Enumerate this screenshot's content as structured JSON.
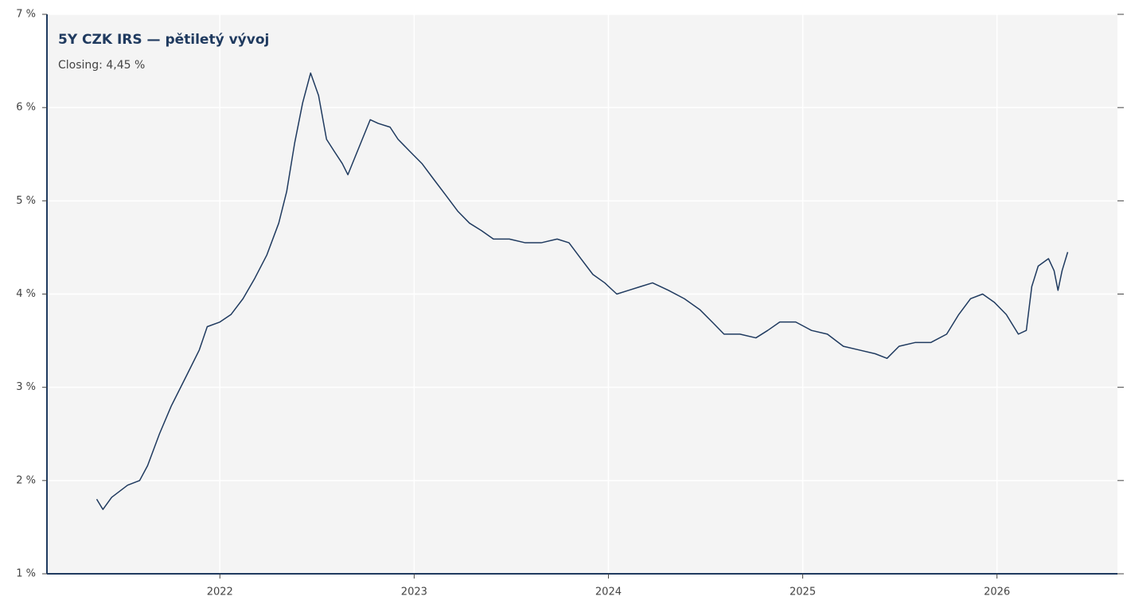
{
  "chart_data": {
    "type": "line",
    "title": "5Y CZK IRS — pětiletý vývoj",
    "subtitle": "Closing: 4,45 %",
    "x": [
      2021.366,
      2021.398,
      2021.443,
      2021.525,
      2021.587,
      2021.628,
      2021.689,
      2021.75,
      2021.832,
      2021.894,
      2021.935,
      2022.0,
      2022.057,
      2022.119,
      2022.18,
      2022.242,
      2022.303,
      2022.344,
      2022.385,
      2022.426,
      2022.467,
      2022.508,
      2022.549,
      2022.589,
      2022.63,
      2022.659,
      2022.692,
      2022.733,
      2022.774,
      2022.815,
      2022.876,
      2022.917,
      2022.978,
      2023.04,
      2023.101,
      2023.163,
      2023.224,
      2023.285,
      2023.347,
      2023.408,
      2023.49,
      2023.572,
      2023.654,
      2023.736,
      2023.797,
      2023.858,
      2023.92,
      2023.981,
      2024.043,
      2024.104,
      2024.165,
      2024.227,
      2024.309,
      2024.391,
      2024.472,
      2024.534,
      2024.595,
      2024.677,
      2024.759,
      2024.82,
      2024.882,
      2024.964,
      2025.045,
      2025.127,
      2025.209,
      2025.291,
      2025.373,
      2025.434,
      2025.496,
      2025.578,
      2025.659,
      2025.741,
      2025.803,
      2025.864,
      2025.926,
      2025.987,
      2026.048,
      2026.11,
      2026.151,
      2026.179,
      2026.212,
      2026.265,
      2026.294,
      2026.314,
      2026.335,
      2026.364
    ],
    "series": [
      {
        "name": "5Y CZK IRS",
        "color": "#1f3a5f",
        "values": [
          1.8,
          1.69,
          1.82,
          1.95,
          2.0,
          2.16,
          2.5,
          2.8,
          3.14,
          3.4,
          3.65,
          3.7,
          3.78,
          3.95,
          4.17,
          4.42,
          4.76,
          5.1,
          5.62,
          6.05,
          6.37,
          6.13,
          5.66,
          5.53,
          5.4,
          5.28,
          5.45,
          5.66,
          5.87,
          5.83,
          5.79,
          5.66,
          5.53,
          5.4,
          5.23,
          5.06,
          4.89,
          4.76,
          4.68,
          4.59,
          4.59,
          4.55,
          4.55,
          4.59,
          4.55,
          4.38,
          4.21,
          4.12,
          4.0,
          4.04,
          4.08,
          4.12,
          4.04,
          3.95,
          3.83,
          3.7,
          3.57,
          3.57,
          3.53,
          3.61,
          3.7,
          3.7,
          3.61,
          3.57,
          3.44,
          3.4,
          3.36,
          3.31,
          3.44,
          3.48,
          3.48,
          3.57,
          3.78,
          3.95,
          4.0,
          3.91,
          3.78,
          3.57,
          3.61,
          4.08,
          4.3,
          4.38,
          4.25,
          4.04,
          4.25,
          4.45
        ]
      }
    ],
    "xlim": [
      2021.11,
      2026.62
    ],
    "xticks": [
      2022,
      2023,
      2024,
      2025,
      2026
    ],
    "ylim": [
      1,
      7
    ],
    "yticks": [
      {
        "value": 1,
        "label": "1 %"
      },
      {
        "value": 2,
        "label": "2 %"
      },
      {
        "value": 3,
        "label": "3 %"
      },
      {
        "value": 4,
        "label": "4 %"
      },
      {
        "value": 5,
        "label": "5 %"
      },
      {
        "value": 6,
        "label": "6 %"
      },
      {
        "value": 7,
        "label": "7 %"
      }
    ],
    "grid": true
  }
}
